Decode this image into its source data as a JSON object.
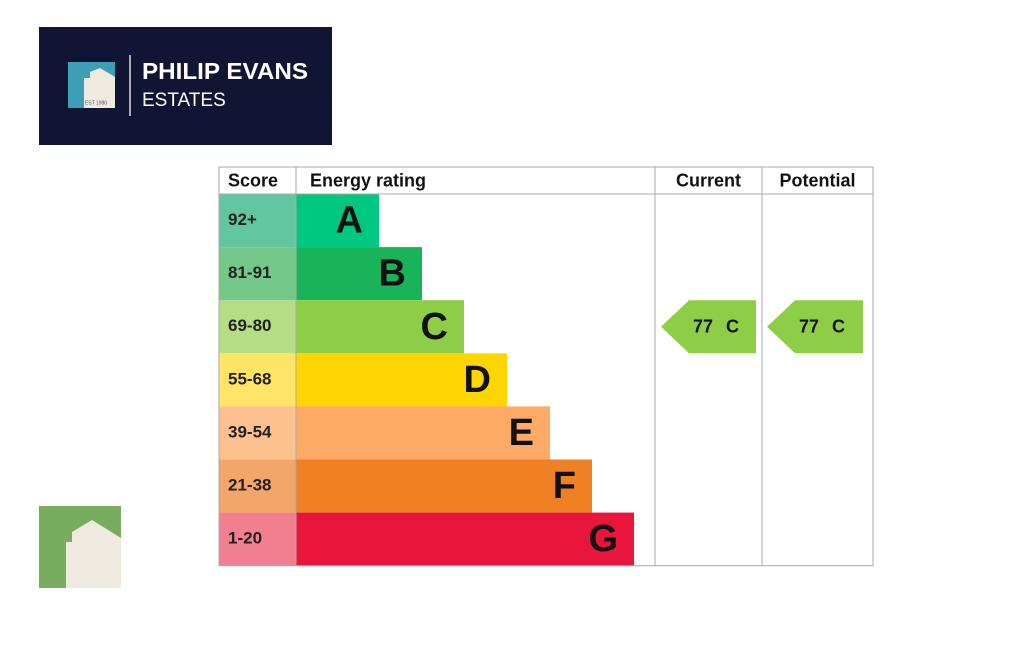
{
  "logo": {
    "name": "PHILIP EVANS",
    "subtitle": "ESTATES",
    "established": "EST 1980"
  },
  "table": {
    "headers": [
      "Score",
      "Energy rating",
      "Current",
      "Potential"
    ],
    "rows": [
      {
        "score": "92+",
        "band": "A"
      },
      {
        "score": "81-91",
        "band": "B"
      },
      {
        "score": "69-80",
        "band": "C"
      },
      {
        "score": "55-68",
        "band": "D"
      },
      {
        "score": "39-54",
        "band": "E"
      },
      {
        "score": "21-38",
        "band": "F"
      },
      {
        "score": "1-20",
        "band": "G"
      }
    ]
  },
  "current": {
    "value": "77",
    "band": "C"
  },
  "potential": {
    "value": "77",
    "band": "C"
  }
}
